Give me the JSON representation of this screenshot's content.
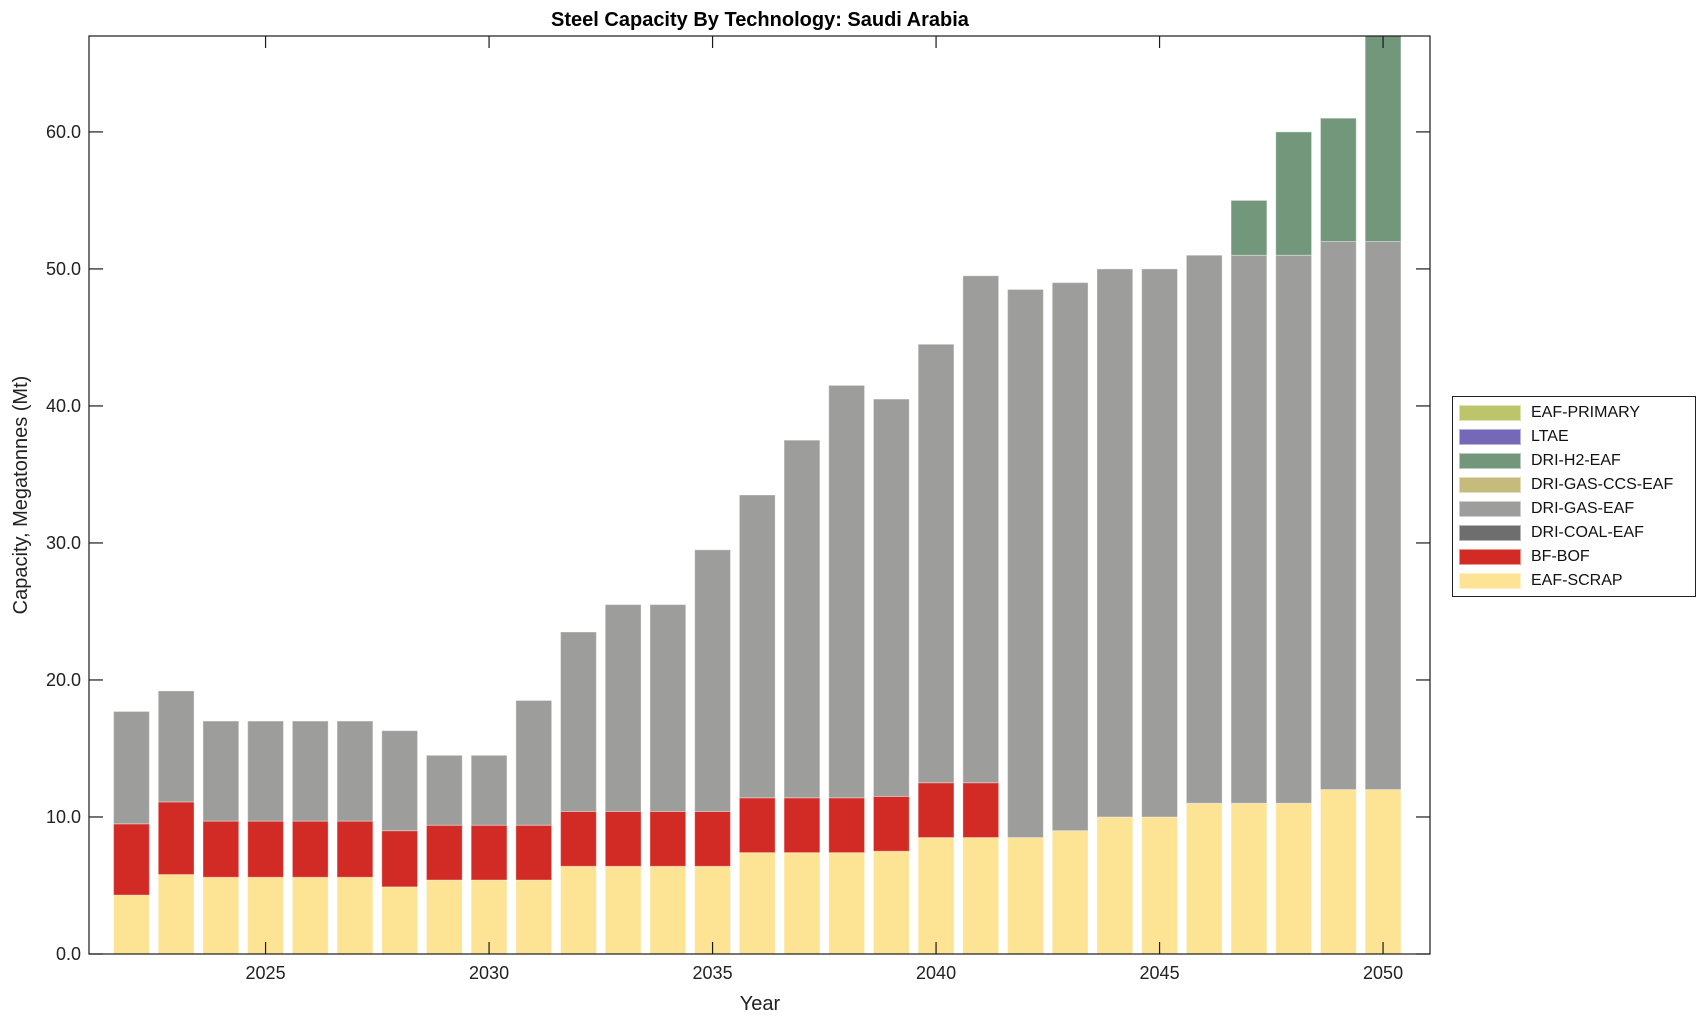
{
  "chart_data": {
    "type": "bar",
    "stacked": true,
    "title": "Steel Capacity By Technology: Saudi Arabia",
    "xlabel": "Year",
    "ylabel": "Capacity, Megatonnes (Mt)",
    "ylim": [
      0,
      67
    ],
    "xlim": [
      2021.05,
      2051.05
    ],
    "grid": false,
    "legend_position": "right",
    "x_ticks": [
      "2025",
      "2030",
      "2035",
      "2040",
      "2045",
      "2050"
    ],
    "y_ticks": [
      "0.0",
      "10.0",
      "20.0",
      "30.0",
      "40.0",
      "50.0",
      "60.0"
    ],
    "x": [
      2022,
      2023,
      2024,
      2025,
      2026,
      2027,
      2028,
      2029,
      2030,
      2031,
      2032,
      2033,
      2034,
      2035,
      2036,
      2037,
      2038,
      2039,
      2040,
      2041,
      2042,
      2043,
      2044,
      2045,
      2046,
      2047,
      2048,
      2049,
      2050
    ],
    "series": [
      {
        "name": "EAF-SCRAP",
        "color": "#fde394",
        "values": [
          4.3,
          5.8,
          5.6,
          5.6,
          5.6,
          5.6,
          4.9,
          5.4,
          5.4,
          5.4,
          6.4,
          6.4,
          6.4,
          6.4,
          7.4,
          7.4,
          7.4,
          7.5,
          8.5,
          8.5,
          8.5,
          9.0,
          10.0,
          10.0,
          11.0,
          11.0,
          11.0,
          12.0,
          12.0
        ]
      },
      {
        "name": "BF-BOF",
        "color": "#d22b25",
        "values": [
          5.2,
          5.3,
          4.1,
          4.1,
          4.1,
          4.1,
          4.1,
          4.0,
          4.0,
          4.0,
          4.0,
          4.0,
          4.0,
          4.0,
          4.0,
          4.0,
          4.0,
          4.0,
          4.0,
          4.0,
          0,
          0,
          0,
          0,
          0,
          0,
          0,
          0,
          0
        ]
      },
      {
        "name": "DRI-COAL-EAF",
        "color": "#6e6e6e",
        "values": [
          0,
          0,
          0,
          0,
          0,
          0,
          0,
          0,
          0,
          0,
          0,
          0,
          0,
          0,
          0,
          0,
          0,
          0,
          0,
          0,
          0,
          0,
          0,
          0,
          0,
          0,
          0,
          0,
          0
        ]
      },
      {
        "name": "DRI-GAS-EAF",
        "color": "#9d9d9b",
        "values": [
          8.2,
          8.1,
          7.3,
          7.3,
          7.3,
          7.3,
          7.3,
          5.1,
          5.1,
          9.1,
          13.1,
          15.1,
          15.1,
          19.1,
          22.1,
          26.1,
          30.1,
          29.0,
          32.0,
          37.0,
          40.0,
          40.0,
          40.0,
          40.0,
          40.0,
          40.0,
          40.0,
          40.0,
          40.0
        ]
      },
      {
        "name": "DRI-GAS-CCS-EAF",
        "color": "#c5bb7c",
        "values": [
          0,
          0,
          0,
          0,
          0,
          0,
          0,
          0,
          0,
          0,
          0,
          0,
          0,
          0,
          0,
          0,
          0,
          0,
          0,
          0,
          0,
          0,
          0,
          0,
          0,
          0,
          0,
          0,
          0
        ]
      },
      {
        "name": "DRI-H2-EAF",
        "color": "#73977b",
        "values": [
          0,
          0,
          0,
          0,
          0,
          0,
          0,
          0,
          0,
          0,
          0,
          0,
          0,
          0,
          0,
          0,
          0,
          0,
          0,
          0,
          0,
          0,
          0,
          0,
          0,
          4.0,
          9.0,
          9.0,
          15.0
        ]
      },
      {
        "name": "LTAE",
        "color": "#7468b7",
        "values": [
          0,
          0,
          0,
          0,
          0,
          0,
          0,
          0,
          0,
          0,
          0,
          0,
          0,
          0,
          0,
          0,
          0,
          0,
          0,
          0,
          0,
          0,
          0,
          0,
          0,
          0,
          0,
          0,
          0
        ]
      },
      {
        "name": "EAF-PRIMARY",
        "color": "#bcc56a",
        "values": [
          0,
          0,
          0,
          0,
          0,
          0,
          0,
          0,
          0,
          0,
          0,
          0,
          0,
          0,
          0,
          0,
          0,
          0,
          0,
          0,
          0,
          0,
          0,
          0,
          0,
          0,
          0,
          0,
          0
        ]
      }
    ],
    "legend_order": [
      "EAF-PRIMARY",
      "LTAE",
      "DRI-H2-EAF",
      "DRI-GAS-CCS-EAF",
      "DRI-GAS-EAF",
      "DRI-COAL-EAF",
      "BF-BOF",
      "EAF-SCRAP"
    ]
  }
}
